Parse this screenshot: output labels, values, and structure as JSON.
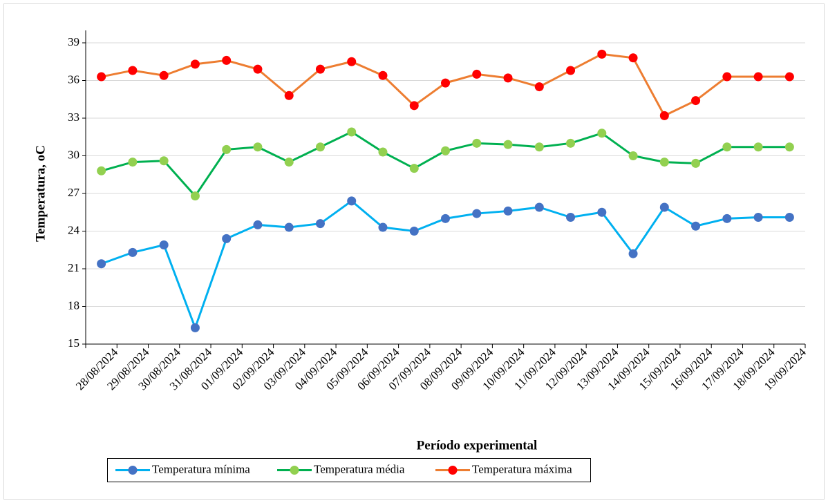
{
  "chart_data": {
    "type": "line",
    "x_label": "Período experimental",
    "y_label": "Temperatura, oC",
    "categories": [
      "28/08/2024",
      "29/08/2024",
      "30/08/2024",
      "31/08/2024",
      "01/09/2024",
      "02/09/2024",
      "03/09/2024",
      "04/09/2024",
      "05/09/2024",
      "06/09/2024",
      "07/09/2024",
      "08/09/2024",
      "09/09/2024",
      "10/09/2024",
      "11/09/2024",
      "12/09/2024",
      "13/09/2024",
      "14/09/2024",
      "15/09/2024",
      "16/09/2024",
      "17/09/2024",
      "18/09/2024",
      "19/09/2024"
    ],
    "series": [
      {
        "name": "Temperatura mínima",
        "color": "#00b0f0",
        "marker_color": "#4472c4",
        "values": [
          21.4,
          22.3,
          22.9,
          16.3,
          23.4,
          24.5,
          24.3,
          24.6,
          26.4,
          24.3,
          24.0,
          25.0,
          25.4,
          25.6,
          25.9,
          25.1,
          25.5,
          22.2,
          25.9,
          24.4,
          25.0,
          25.1,
          25.1
        ]
      },
      {
        "name": "Temperatura média",
        "color": "#00b050",
        "marker_color": "#92d050",
        "values": [
          28.8,
          29.5,
          29.6,
          26.8,
          30.5,
          30.7,
          29.5,
          30.7,
          31.9,
          30.3,
          29.0,
          30.4,
          31.0,
          30.9,
          30.7,
          31.0,
          31.8,
          30.0,
          29.5,
          29.4,
          30.7,
          30.7,
          30.7
        ]
      },
      {
        "name": "Temperatura máxima",
        "color": "#ed7d31",
        "marker_color": "#ff0000",
        "values": [
          36.3,
          36.8,
          36.4,
          37.3,
          37.6,
          36.9,
          34.8,
          36.9,
          37.5,
          36.4,
          34.0,
          35.8,
          36.5,
          36.2,
          35.5,
          36.8,
          38.1,
          37.8,
          33.2,
          34.4,
          36.3,
          36.3,
          36.3
        ]
      }
    ],
    "ylim": [
      15,
      39
    ],
    "yticks": [
      15,
      18,
      21,
      24,
      27,
      30,
      33,
      36,
      39
    ],
    "grid": true,
    "legend": "bottom"
  }
}
